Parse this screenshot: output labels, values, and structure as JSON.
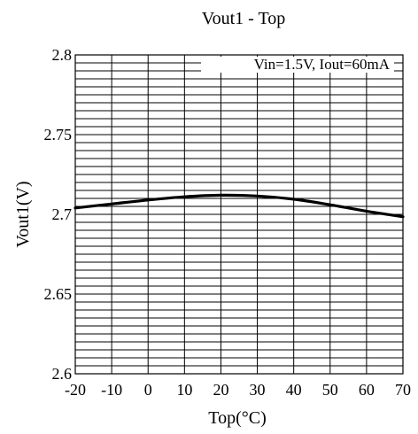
{
  "chart_data": {
    "type": "line",
    "title": "Vout1 - Top",
    "xlabel": "Top(°C)",
    "ylabel": "Vout1(V)",
    "annotation": "Vin=1.5V, Iout=60mA",
    "xlim": [
      -20,
      70
    ],
    "ylim": [
      2.6,
      2.8
    ],
    "x_ticks": [
      -20,
      -10,
      0,
      10,
      20,
      30,
      40,
      50,
      60,
      70
    ],
    "y_ticks": [
      2.6,
      2.65,
      2.7,
      2.75,
      2.8
    ],
    "x_tick_labels": [
      "-20",
      "-10",
      "0",
      "10",
      "20",
      "30",
      "40",
      "50",
      "60",
      "70"
    ],
    "y_tick_labels": [
      "2.6",
      "2.65",
      "2.7",
      "2.75",
      "2.8"
    ],
    "grid": true,
    "series": [
      {
        "x": [
          -20,
          -10,
          0,
          10,
          20,
          30,
          40,
          50,
          60,
          70
        ],
        "y": [
          2.704,
          2.7065,
          2.709,
          2.711,
          2.712,
          2.7115,
          2.7095,
          2.706,
          2.702,
          2.6985
        ],
        "color": "#000000"
      }
    ]
  }
}
